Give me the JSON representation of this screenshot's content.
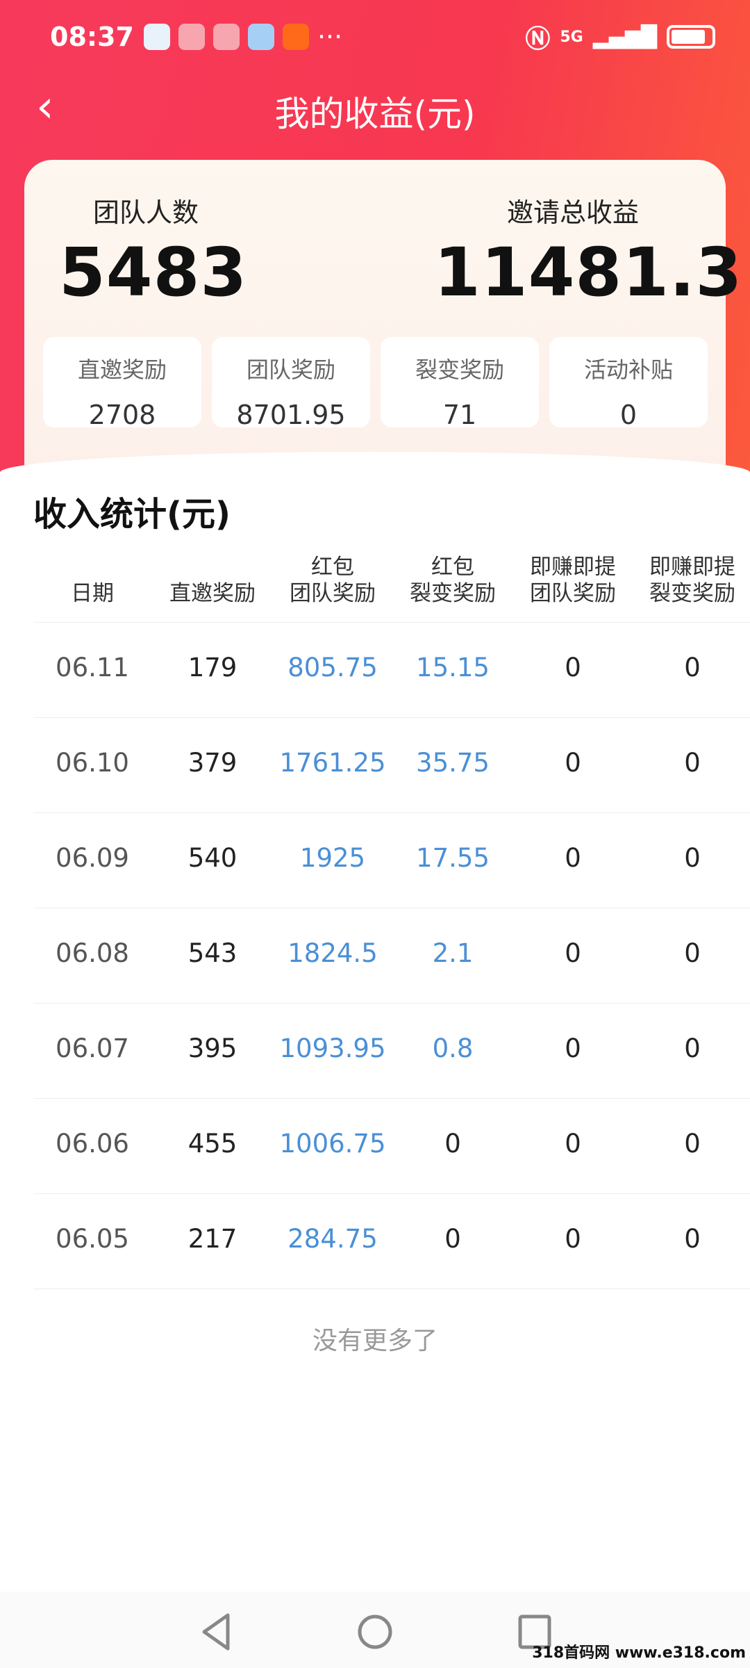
{
  "status_bar": {
    "time": "08:37",
    "more": "···",
    "network": "5G"
  },
  "header": {
    "back": "‹",
    "title": "我的收益(元)"
  },
  "summary": {
    "team_count": {
      "label": "团队人数",
      "value": "5483"
    },
    "total_income": {
      "label": "邀请总收益",
      "value": "11481.3"
    },
    "breakdown": [
      {
        "label": "直邀奖励",
        "value": "2708"
      },
      {
        "label": "团队奖励",
        "value": "8701.95"
      },
      {
        "label": "裂变奖励",
        "value": "71"
      },
      {
        "label": "活动补贴",
        "value": "0"
      }
    ]
  },
  "stats": {
    "title": "收入统计(元)",
    "headers": [
      "日期",
      "直邀奖励",
      "红包\n团队奖励",
      "红包\n裂变奖励",
      "即赚即提\n团队奖励",
      "即赚即提\n裂变奖励"
    ],
    "rows": [
      [
        "06.11",
        "179",
        "805.75",
        "15.15",
        "0",
        "0"
      ],
      [
        "06.10",
        "379",
        "1761.25",
        "35.75",
        "0",
        "0"
      ],
      [
        "06.09",
        "540",
        "1925",
        "17.55",
        "0",
        "0"
      ],
      [
        "06.08",
        "543",
        "1824.5",
        "2.1",
        "0",
        "0"
      ],
      [
        "06.07",
        "395",
        "1093.95",
        "0.8",
        "0",
        "0"
      ],
      [
        "06.06",
        "455",
        "1006.75",
        "0",
        "0",
        "0"
      ],
      [
        "06.05",
        "217",
        "284.75",
        "0",
        "0",
        "0"
      ]
    ],
    "end_text": "没有更多了"
  },
  "watermark": "318首码网 www.e318.com",
  "colors": {
    "header_red": "#f7384f",
    "link_blue": "#4a8fd6"
  }
}
